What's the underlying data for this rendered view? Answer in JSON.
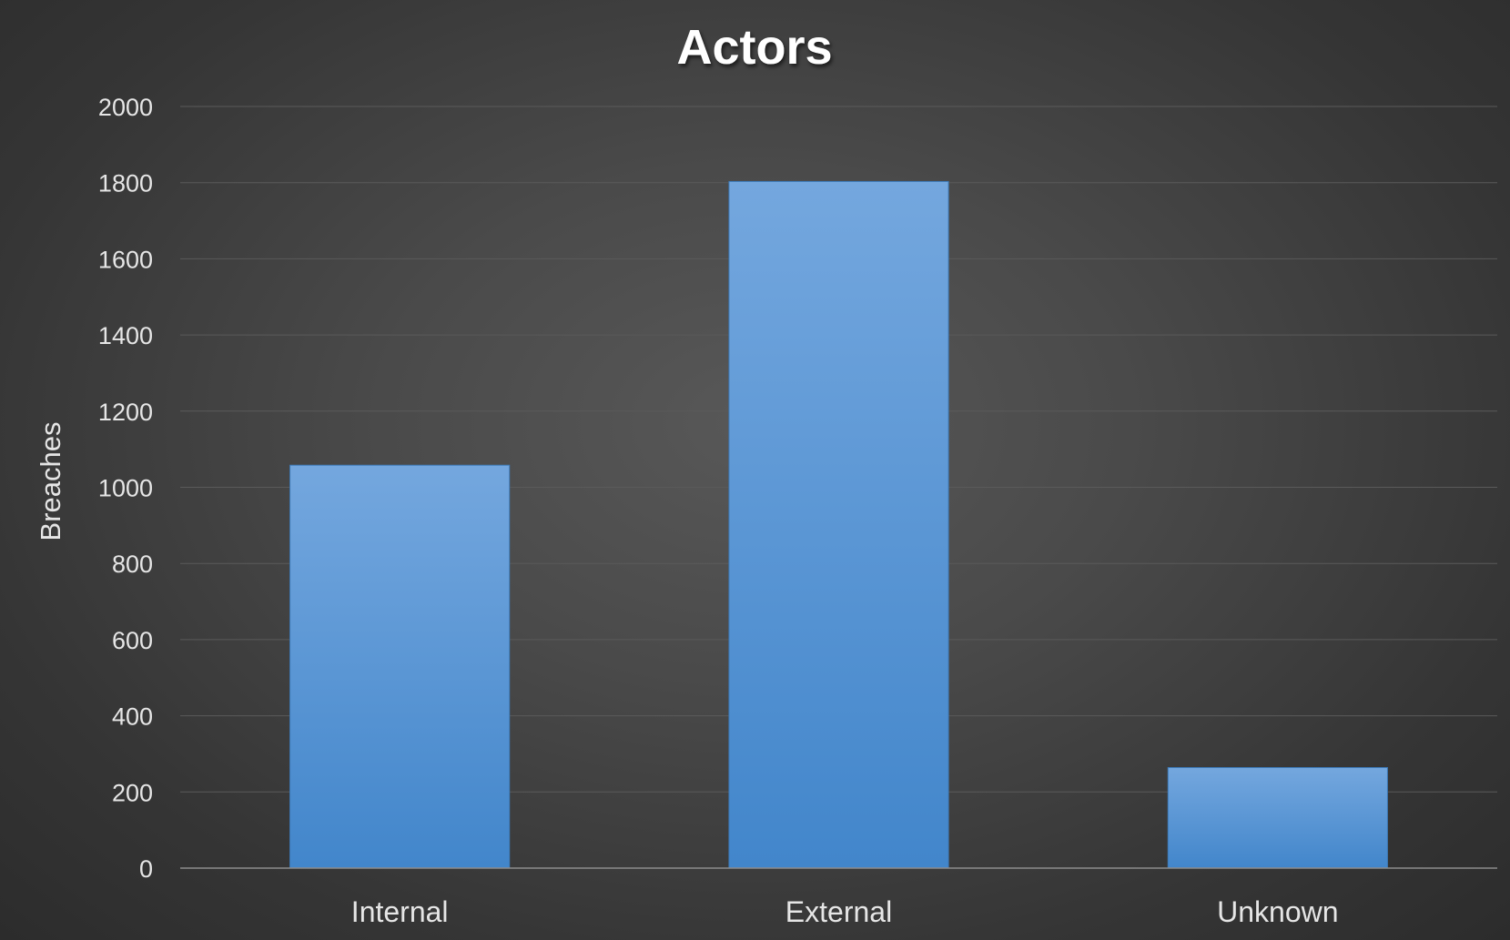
{
  "chart_data": {
    "type": "bar",
    "title": "Actors",
    "xlabel": "",
    "ylabel": "Breaches",
    "categories": [
      "Internal",
      "External",
      "Unknown"
    ],
    "values": [
      1058,
      1803,
      264
    ],
    "ylim": [
      0,
      2000
    ],
    "yticks": [
      0,
      200,
      400,
      600,
      800,
      1000,
      1200,
      1400,
      1600,
      1800,
      2000
    ],
    "grid": true,
    "legend": "none",
    "colors": {
      "bar_top": "#74a7de",
      "bar_bottom": "#4286cb",
      "gridline": "#5a5a5a",
      "axis": "#8c8c8c"
    }
  }
}
